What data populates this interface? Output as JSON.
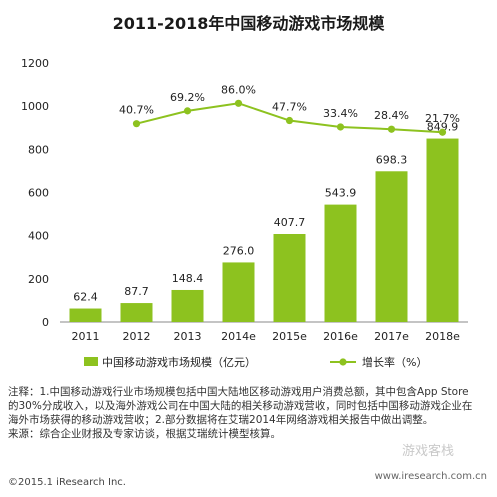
{
  "chart_data": {
    "type": "bar+line",
    "title": "2011-2018年中国移动游戏市场规模",
    "categories": [
      "2011",
      "2012",
      "2013",
      "2014e",
      "2015e",
      "2016e",
      "2017e",
      "2018e"
    ],
    "series": [
      {
        "name": "中国移动游戏市场规模（亿元）",
        "type": "bar",
        "values": [
          62.4,
          87.7,
          148.4,
          276.0,
          407.7,
          543.9,
          698.3,
          849.9
        ],
        "labels": [
          "62.4",
          "87.7",
          "148.4",
          "276.0",
          "407.7",
          "543.9",
          "698.3",
          "849.9"
        ],
        "color": "#8dc21f"
      },
      {
        "name": "增长率（%）",
        "type": "line",
        "values": [
          null,
          40.7,
          69.2,
          86.0,
          47.7,
          33.4,
          28.4,
          21.7
        ],
        "labels": [
          "",
          "40.7%",
          "69.2%",
          "86.0%",
          "47.7%",
          "33.4%",
          "28.4%",
          "21.7%"
        ],
        "color": "#8dc21f"
      }
    ],
    "y_ticks": [
      "1200",
      "1000",
      "800",
      "600",
      "400",
      "200",
      "0"
    ],
    "ylim": [
      0,
      1200
    ],
    "grid": false,
    "legend": "bottom"
  },
  "notes": {
    "line1": "注释：1.中国移动游戏行业市场规模包括中国大陆地区移动游戏用户消费总额，其中包含App Store",
    "line2": "的30%分成收入，以及海外游戏公司在中国大陆的相关移动游戏营收，同时包括中国移动游戏企业在",
    "line3": "海外市场获得的移动游戏营收；2.部分数据将在艾瑞2014年网络游戏相关报告中做出调整。",
    "line4": "来源：综合企业财报及专家访谈，根据艾瑞统计模型核算。"
  },
  "footer": {
    "copyright": "©2015.1 iResearch Inc.",
    "website": "www.iresearch.com.cn",
    "watermark": "游戏客栈"
  }
}
